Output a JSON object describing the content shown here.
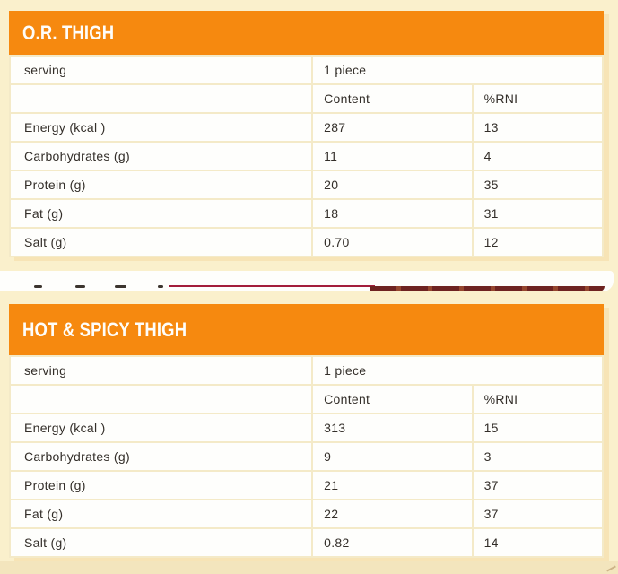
{
  "colors": {
    "background": "#FAF0CC",
    "header_orange": "#F6890F",
    "table_white": "#FEFEFC",
    "grid_line": "#F4EAC8",
    "body_text": "#332E29",
    "title_text": "#FEFDFA",
    "maroon_rule": "#A31D3B",
    "bottom_strip": "#F3E5BD"
  },
  "tables": [
    {
      "title": "O.R. THIGH",
      "serving": {
        "label": "serving",
        "value": "1 piece"
      },
      "columns": {
        "content": "Content",
        "rni": "%RNI"
      },
      "rows": [
        {
          "label": "Energy (kcal )",
          "content": "287",
          "rni": "13"
        },
        {
          "label": "Carbohydrates (g)",
          "content": "11",
          "rni": "4"
        },
        {
          "label": "Protein (g)",
          "content": "20",
          "rni": "35"
        },
        {
          "label": "Fat (g)",
          "content": "18",
          "rni": "31"
        },
        {
          "label": "Salt (g)",
          "content": "0.70",
          "rni": "12"
        }
      ]
    },
    {
      "title": "HOT & SPICY THIGH",
      "serving": {
        "label": "serving",
        "value": "1 piece"
      },
      "columns": {
        "content": "Content",
        "rni": "%RNI"
      },
      "rows": [
        {
          "label": "Energy (kcal )",
          "content": "313",
          "rni": "15"
        },
        {
          "label": "Carbohydrates (g)",
          "content": "9",
          "rni": "3"
        },
        {
          "label": "Protein (g)",
          "content": "21",
          "rni": "37"
        },
        {
          "label": "Fat (g)",
          "content": "22",
          "rni": "37"
        },
        {
          "label": "Salt (g)",
          "content": "0.82",
          "rni": "14"
        }
      ]
    }
  ]
}
